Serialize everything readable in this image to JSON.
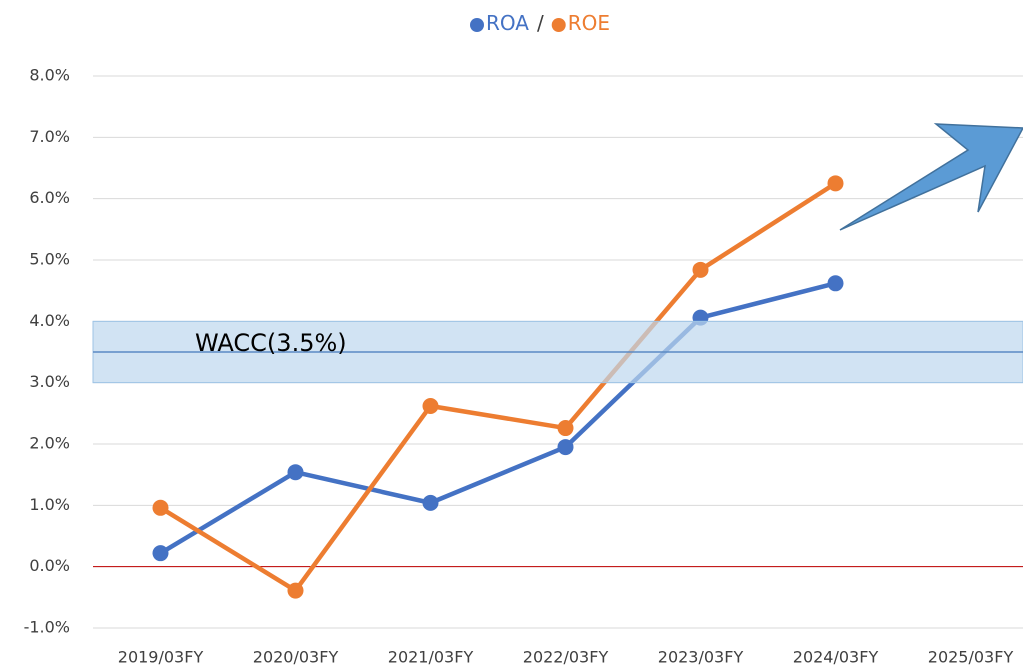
{
  "chart_data": {
    "type": "line",
    "legend_separator": "/",
    "categories": [
      "2019/03FY",
      "2020/03FY",
      "2021/03FY",
      "2022/03FY",
      "2023/03FY",
      "2024/03FY",
      "2025/03FY"
    ],
    "series": [
      {
        "name": "ROA",
        "color": "#4472c4",
        "values": [
          0.22,
          1.54,
          1.04,
          1.95,
          4.06,
          4.62,
          null
        ]
      },
      {
        "name": "ROE",
        "color": "#ed7d31",
        "values": [
          0.96,
          -0.39,
          2.62,
          2.26,
          4.84,
          6.25,
          null
        ]
      }
    ],
    "ylim": [
      -1,
      8
    ],
    "yticks": [
      {
        "value": -1,
        "label": "-1.0%"
      },
      {
        "value": 0,
        "label": "0.0%"
      },
      {
        "value": 1,
        "label": "1.0%"
      },
      {
        "value": 2,
        "label": "2.0%"
      },
      {
        "value": 3,
        "label": "3.0%"
      },
      {
        "value": 4,
        "label": "4.0%"
      },
      {
        "value": 5,
        "label": "5.0%"
      },
      {
        "value": 6,
        "label": "6.0%"
      },
      {
        "value": 7,
        "label": "7.0%"
      },
      {
        "value": 8,
        "label": "8.0%"
      }
    ],
    "grid": true,
    "zero_line_color": "#c00000",
    "wacc": {
      "label": "WACC(3.5%)",
      "value": 3.5,
      "band": [
        3,
        4
      ],
      "color": "#5b8ac4"
    }
  }
}
